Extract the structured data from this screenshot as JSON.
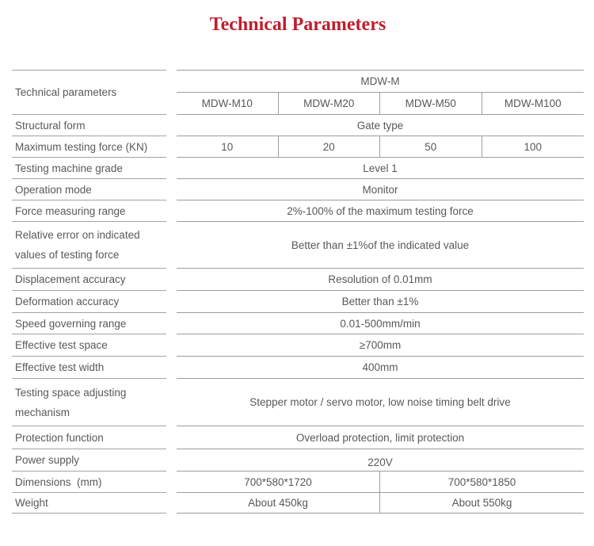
{
  "title": "Technical Parameters",
  "accent_color": "#be1e2d",
  "table": {
    "corner_label": "Technical parameters",
    "group_header": "MDW-M",
    "models": [
      "MDW-M10",
      "MDW-M20",
      "MDW-M50",
      "MDW-M100"
    ],
    "rows": [
      {
        "label": "Structural form",
        "value": "Gate type"
      },
      {
        "label": "Maximum testing force (KN)",
        "values": [
          "10",
          "20",
          "50",
          "100"
        ]
      },
      {
        "label": "Testing machine grade",
        "value": "Level 1"
      },
      {
        "label": "Operation mode",
        "value": "Monitor"
      },
      {
        "label": "Force measuring range",
        "value": "2%-100% of the maximum testing force"
      },
      {
        "label": "Relative error on indicated values of testing force",
        "value": "Better than ±1%of the indicated value"
      },
      {
        "label": "Displacement accuracy",
        "value": "Resolution of 0.01mm"
      },
      {
        "label": "Deformation accuracy",
        "value": "Better than ±1%"
      },
      {
        "label": "Speed governing range",
        "value": "0.01-500mm/min"
      },
      {
        "label": "Effective test space",
        "value": "≥700mm"
      },
      {
        "label": "Effective test width",
        "value": "400mm"
      },
      {
        "label": "Testing space adjusting mechanism",
        "value": "Stepper motor / servo motor, low noise timing belt drive"
      },
      {
        "label": "Protection function",
        "value": "Overload protection, limit protection"
      },
      {
        "label": "Power supply",
        "value": "220V"
      },
      {
        "label": "Dimensions  (mm)",
        "values": [
          "700*580*1720",
          "700*580*1850"
        ]
      },
      {
        "label": "Weight",
        "values": [
          "About 450kg",
          "About 550kg"
        ]
      }
    ]
  }
}
